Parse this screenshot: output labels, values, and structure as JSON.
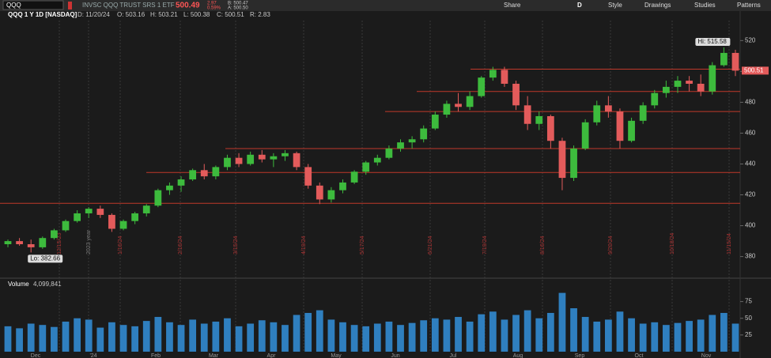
{
  "toolbar": {
    "symbol": "QQQ",
    "description": "INVSC QQQ TRUST SRS 1 ETF",
    "last": "500.49",
    "change": "2.97",
    "change_pct": "0.59%",
    "bid": "B: 500.47",
    "ask": "A: 500.50",
    "share": "Share",
    "period": "D",
    "style": "Style",
    "drawings": "Drawings",
    "studies": "Studies",
    "patterns": "Patterns"
  },
  "info": {
    "title": "QQQ 1 Y 1D [NASDAQ]",
    "date": "D: 11/20/24",
    "open": "O: 503.16",
    "high": "H: 503.21",
    "low": "L: 500.38",
    "close": "C: 500.51",
    "range": "R: 2.83"
  },
  "chart_data": {
    "type": "candlestick",
    "hi_label": "Hi: 515.58",
    "lo_label": "Lo: 382.66",
    "price_tag": "500.51",
    "candles": [
      [
        388,
        391,
        386,
        390
      ],
      [
        390,
        392,
        387,
        388
      ],
      [
        388,
        391,
        382.66,
        386
      ],
      [
        386,
        393,
        385,
        392
      ],
      [
        392,
        398,
        391,
        397
      ],
      [
        397,
        404,
        396,
        403
      ],
      [
        403,
        410,
        402,
        408
      ],
      [
        408,
        412,
        405,
        411
      ],
      [
        411,
        413,
        405,
        407
      ],
      [
        407,
        408,
        396,
        398
      ],
      [
        398,
        404,
        397,
        403
      ],
      [
        403,
        409,
        401,
        408
      ],
      [
        408,
        414,
        406,
        413
      ],
      [
        413,
        424,
        412,
        423
      ],
      [
        423,
        428,
        420,
        426
      ],
      [
        426,
        432,
        422,
        430
      ],
      [
        430,
        437,
        429,
        436
      ],
      [
        436,
        440,
        430,
        432
      ],
      [
        432,
        439,
        430,
        438
      ],
      [
        438,
        446,
        436,
        444
      ],
      [
        444,
        447,
        438,
        440
      ],
      [
        440,
        448,
        439,
        446
      ],
      [
        446,
        449,
        441,
        443
      ],
      [
        443,
        447,
        438,
        445
      ],
      [
        445,
        449,
        442,
        447
      ],
      [
        447,
        448,
        436,
        438
      ],
      [
        438,
        440,
        424,
        426
      ],
      [
        426,
        428,
        414,
        417
      ],
      [
        417,
        425,
        415,
        423
      ],
      [
        423,
        430,
        421,
        428
      ],
      [
        428,
        436,
        427,
        435
      ],
      [
        435,
        442,
        433,
        441
      ],
      [
        441,
        446,
        439,
        444
      ],
      [
        444,
        452,
        443,
        450
      ],
      [
        450,
        456,
        448,
        454
      ],
      [
        454,
        458,
        450,
        456
      ],
      [
        456,
        465,
        454,
        463
      ],
      [
        463,
        474,
        462,
        472
      ],
      [
        472,
        481,
        470,
        479
      ],
      [
        479,
        486,
        474,
        477
      ],
      [
        477,
        487,
        475,
        484
      ],
      [
        484,
        497,
        483,
        496
      ],
      [
        496,
        503,
        494,
        501
      ],
      [
        501,
        503,
        490,
        492
      ],
      [
        492,
        494,
        475,
        478
      ],
      [
        478,
        484,
        462,
        466
      ],
      [
        466,
        474,
        462,
        471
      ],
      [
        471,
        472,
        450,
        455
      ],
      [
        455,
        457,
        423,
        431
      ],
      [
        431,
        452,
        429,
        450
      ],
      [
        450,
        469,
        449,
        467
      ],
      [
        467,
        481,
        465,
        478
      ],
      [
        478,
        484,
        470,
        474
      ],
      [
        474,
        476,
        450,
        455
      ],
      [
        455,
        470,
        454,
        468
      ],
      [
        468,
        480,
        466,
        478
      ],
      [
        478,
        488,
        476,
        486
      ],
      [
        486,
        494,
        483,
        490
      ],
      [
        490,
        497,
        486,
        494
      ],
      [
        494,
        497,
        487,
        492
      ],
      [
        492,
        498,
        484,
        487
      ],
      [
        487,
        506,
        485,
        504
      ],
      [
        504,
        515.58,
        503,
        512
      ],
      [
        512,
        514,
        497,
        500.51
      ]
    ],
    "up_color": "#3dbb3d",
    "down_color": "#e35b5b",
    "levels": [
      501.5,
      487,
      474,
      450,
      434.5,
      414.5
    ],
    "level_color": "#c0392b",
    "ylim": [
      367,
      534
    ],
    "yticks": [
      380,
      400,
      420,
      440,
      460,
      480,
      500,
      520
    ],
    "months": [
      "Dec",
      "'24",
      "Feb",
      "Mar",
      "Apr",
      "May",
      "Jun",
      "Jul",
      "Aug",
      "Sep",
      "Oct",
      "Nov"
    ],
    "date_markers": [
      "12/15/23",
      "2023 year",
      "1/16/24",
      "2/16/24",
      "3/15/24",
      "4/19/24",
      "5/17/24",
      "6/21/24",
      "7/19/24",
      "8/16/24",
      "9/20/24",
      "10/18/24",
      "11/15/24"
    ],
    "volume_label": "Volume",
    "volume_total": "4,099,841",
    "volume": [
      38,
      35,
      42,
      40,
      37,
      45,
      50,
      48,
      36,
      44,
      40,
      38,
      46,
      52,
      44,
      40,
      48,
      42,
      45,
      50,
      38,
      42,
      47,
      44,
      40,
      55,
      58,
      62,
      48,
      44,
      40,
      38,
      42,
      45,
      40,
      43,
      47,
      50,
      48,
      52,
      45,
      56,
      60,
      48,
      55,
      62,
      50,
      58,
      88,
      65,
      52,
      45,
      48,
      60,
      50,
      42,
      44,
      40,
      43,
      46,
      48,
      55,
      58,
      42
    ],
    "volume_color": "#2f7fbf",
    "vlim": [
      0,
      110
    ],
    "vticks": [
      25,
      50,
      75
    ]
  }
}
